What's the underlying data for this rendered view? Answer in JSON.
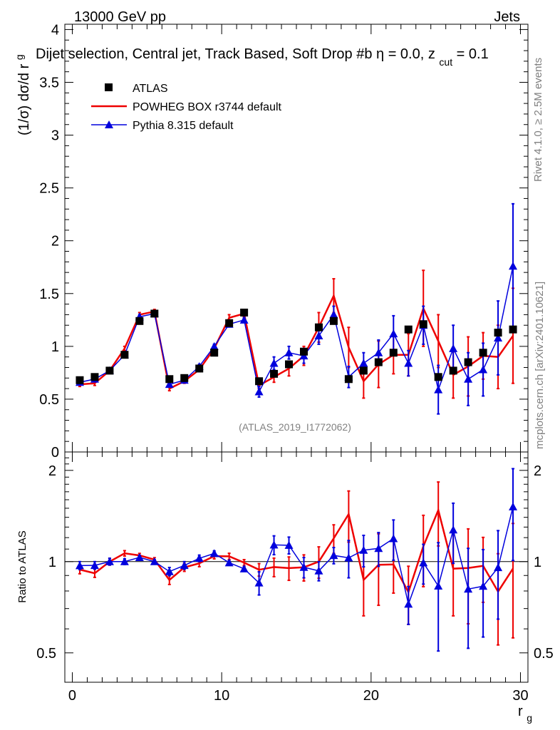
{
  "header": {
    "energy_label": "13000 GeV pp",
    "category_label": "Jets",
    "title_main": "Dijet selection, Central jet, Track Based, Soft Drop #b",
    "title_eta": "η = 0.0, z",
    "title_sub": "cut",
    "title_end": " = 0.1",
    "rivet_label": "Rivet 4.1.0, ≥ 2.5M events",
    "mcplots_label": "mcplots.cern.ch [arXiv:2401.10621]",
    "analysis_label": "(ATLAS_2019_I1772062)"
  },
  "legend": {
    "atlas": "ATLAS",
    "powheg": "POWHEG BOX r3744 default",
    "pythia": "Pythia 8.315 default"
  },
  "axes": {
    "ylabel_top": "(1/σ) dσ/d r",
    "ylabel_top_sub": "g",
    "ylabel_ratio": "Ratio to ATLAS",
    "xlabel": "r",
    "xlabel_sub": "g",
    "top_ticks": [
      "0",
      "0.5",
      "1",
      "1.5",
      "2",
      "2.5",
      "3",
      "3.5",
      "4"
    ],
    "ratio_ticks_left": [
      "0.5",
      "1",
      "2"
    ],
    "ratio_ticks_right": [
      "0.5",
      "1",
      "2"
    ],
    "x_ticks": [
      "0",
      "10",
      "20",
      "30"
    ]
  },
  "chart_data": {
    "type": "scatter",
    "title": "Dijet selection, Central jet, Track Based, Soft Drop #b η = 0.0, z_cut = 0.1",
    "xlabel": "r_g",
    "ylabel": "(1/σ) dσ/d r_g",
    "xlim": [
      -0.5,
      30.5
    ],
    "ylim": [
      0,
      4.05
    ],
    "ratio_ylim": [
      0.4,
      2.3
    ],
    "x": [
      0.5,
      1.5,
      2.5,
      3.5,
      4.5,
      5.5,
      6.5,
      7.5,
      8.5,
      9.5,
      10.5,
      11.5,
      12.5,
      13.5,
      14.5,
      15.5,
      16.5,
      17.5,
      18.5,
      19.5,
      20.5,
      21.5,
      22.5,
      23.5,
      24.5,
      25.5,
      26.5,
      27.5,
      28.5,
      29.5
    ],
    "series": [
      {
        "name": "ATLAS",
        "color": "#000000",
        "values": [
          0.68,
          0.71,
          0.77,
          0.92,
          1.24,
          1.31,
          0.69,
          0.7,
          0.79,
          0.94,
          1.22,
          1.32,
          0.67,
          0.74,
          0.83,
          0.95,
          1.18,
          1.24,
          0.69,
          0.77,
          0.85,
          0.94,
          1.16,
          1.21,
          0.71,
          0.77,
          0.85,
          0.94,
          1.13,
          1.16
        ]
      },
      {
        "name": "POWHEG BOX r3744 default",
        "color": "#ee0000",
        "values": [
          0.64,
          0.65,
          0.77,
          0.98,
          1.3,
          1.33,
          0.6,
          0.67,
          0.78,
          0.98,
          1.27,
          1.31,
          0.63,
          0.71,
          0.79,
          0.91,
          1.18,
          1.48,
          0.99,
          0.67,
          0.83,
          0.92,
          0.92,
          1.36,
          1.05,
          0.73,
          0.81,
          0.91,
          0.9,
          1.1
        ],
        "errors": [
          0.02,
          0.02,
          0.02,
          0.02,
          0.02,
          0.02,
          0.02,
          0.02,
          0.02,
          0.02,
          0.03,
          0.03,
          0.03,
          0.05,
          0.07,
          0.09,
          0.14,
          0.16,
          0.19,
          0.16,
          0.22,
          0.18,
          0.2,
          0.36,
          0.25,
          0.22,
          0.28,
          0.22,
          0.3,
          0.45
        ]
      },
      {
        "name": "Pythia 8.315 default",
        "color": "#0000dd",
        "values": [
          0.66,
          0.69,
          0.77,
          0.92,
          1.28,
          1.31,
          0.64,
          0.68,
          0.81,
          1.0,
          1.21,
          1.25,
          0.57,
          0.84,
          0.94,
          0.91,
          1.1,
          1.3,
          0.71,
          0.84,
          0.94,
          1.12,
          0.84,
          1.2,
          0.59,
          0.98,
          0.69,
          0.78,
          1.08,
          1.76
        ],
        "errors": [
          0.02,
          0.02,
          0.02,
          0.02,
          0.02,
          0.02,
          0.02,
          0.02,
          0.02,
          0.02,
          0.02,
          0.02,
          0.05,
          0.06,
          0.06,
          0.07,
          0.08,
          0.08,
          0.1,
          0.1,
          0.12,
          0.17,
          0.12,
          0.18,
          0.23,
          0.22,
          0.25,
          0.25,
          0.35,
          0.59
        ]
      }
    ]
  }
}
